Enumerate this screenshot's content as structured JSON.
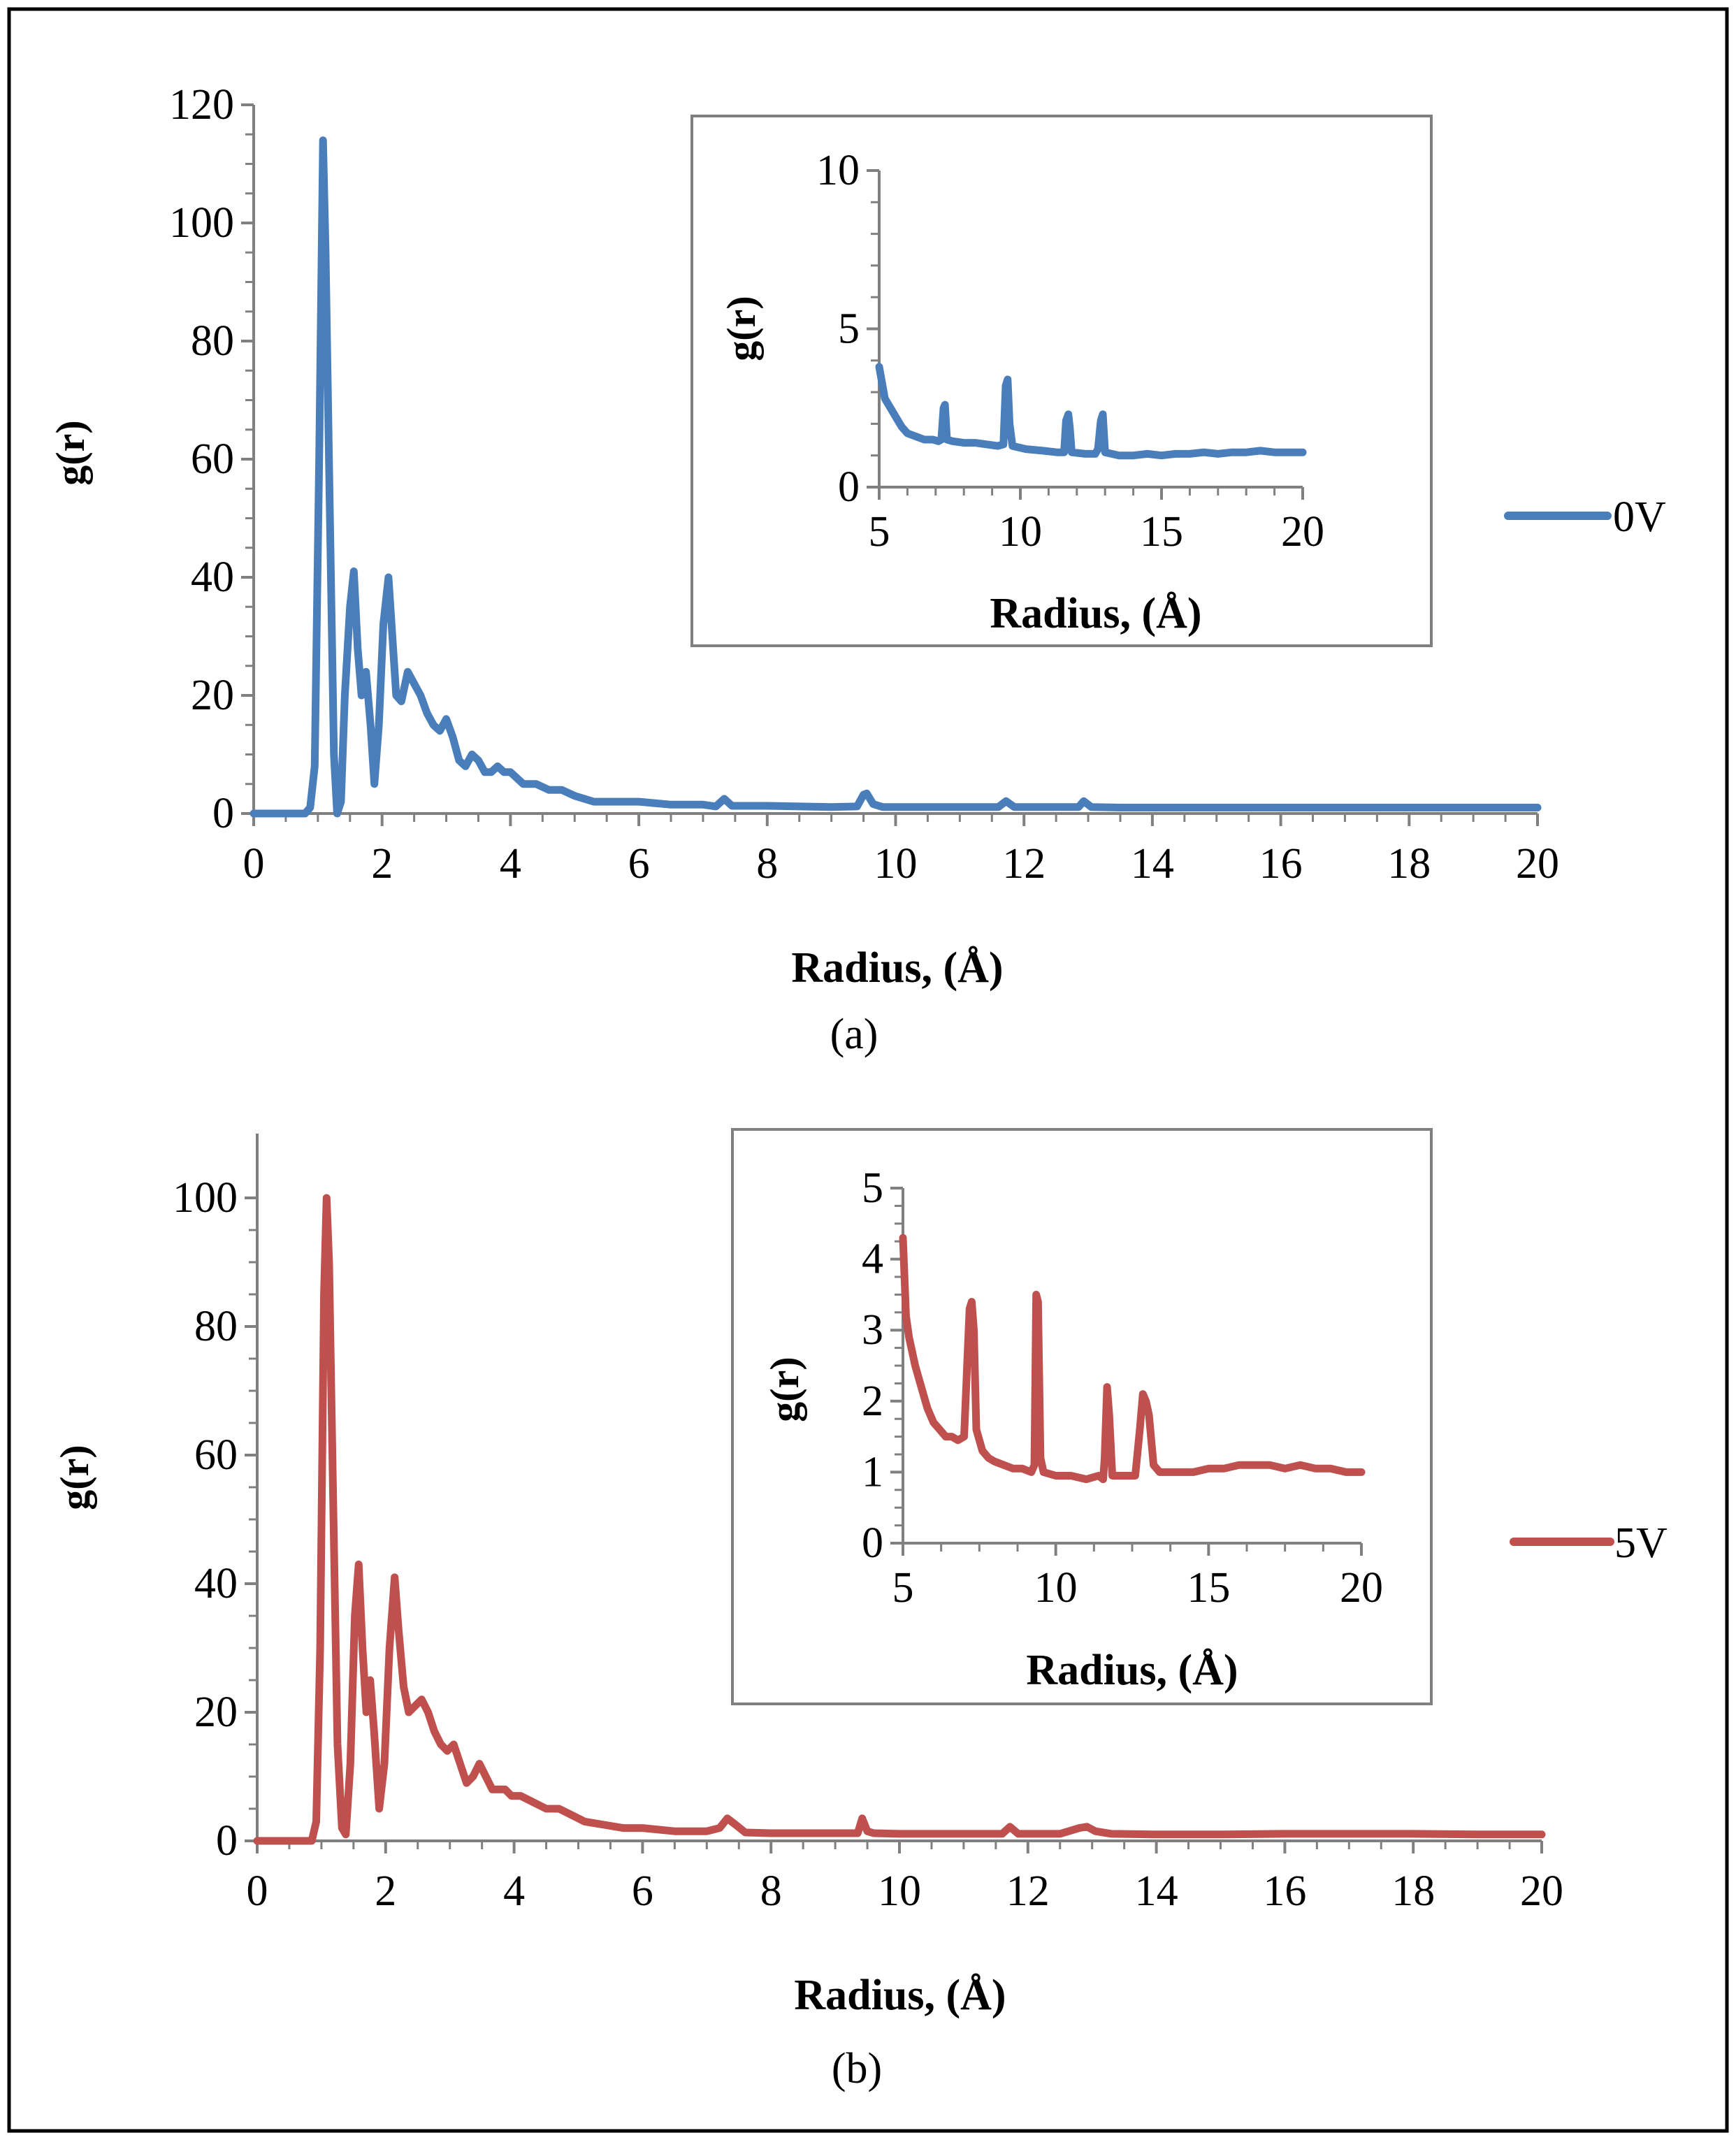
{
  "figure": {
    "caption_a": "(a)",
    "caption_b": "(b)"
  },
  "chart_data": [
    {
      "type": "line",
      "id": "a",
      "xlabel": "Radius, (Å)",
      "ylabel": "g(r)",
      "xlim": [
        0,
        20
      ],
      "ylim": [
        0,
        120
      ],
      "xticks": [
        0,
        2,
        4,
        6,
        8,
        10,
        12,
        14,
        16,
        18,
        20
      ],
      "yticks": [
        0,
        20,
        40,
        60,
        80,
        100,
        120
      ],
      "legend": "right",
      "color": "#4A7EBB",
      "series": [
        {
          "name": "0V",
          "x": [
            0,
            0.8,
            0.88,
            0.95,
            1.02,
            1.08,
            1.12,
            1.18,
            1.25,
            1.3,
            1.36,
            1.42,
            1.5,
            1.56,
            1.62,
            1.68,
            1.75,
            1.82,
            1.88,
            1.95,
            2.02,
            2.1,
            2.16,
            2.22,
            2.3,
            2.4,
            2.5,
            2.6,
            2.7,
            2.8,
            2.9,
            3.0,
            3.1,
            3.2,
            3.3,
            3.4,
            3.5,
            3.6,
            3.7,
            3.8,
            3.9,
            4.0,
            4.2,
            4.4,
            4.6,
            4.8,
            5.0,
            5.3,
            5.6,
            6.0,
            6.5,
            7.0,
            7.2,
            7.33,
            7.45,
            7.6,
            8.0,
            8.5,
            9.0,
            9.4,
            9.5,
            9.55,
            9.65,
            9.8,
            10.5,
            11.0,
            11.6,
            11.72,
            11.85,
            12.3,
            12.85,
            12.93,
            13.05,
            13.5,
            14,
            15,
            16,
            17,
            18,
            19,
            20
          ],
          "y": [
            0,
            0,
            1,
            8,
            60,
            114,
            95,
            55,
            10,
            0,
            2,
            20,
            35,
            41,
            28,
            20,
            24,
            15,
            5,
            15,
            32,
            40,
            30,
            20,
            19,
            24,
            22,
            20,
            17,
            15,
            14,
            16,
            13,
            9,
            8,
            10,
            9,
            7,
            7,
            8,
            7,
            7,
            5,
            5,
            4,
            4,
            3,
            2,
            2,
            2,
            1.5,
            1.5,
            1.2,
            2.5,
            1.3,
            1.3,
            1.3,
            1.2,
            1.1,
            1.2,
            3.2,
            3.4,
            1.6,
            1.1,
            1.1,
            1.1,
            1.1,
            2.1,
            1.1,
            1.1,
            1.1,
            2.1,
            1.1,
            1.0,
            1.0,
            1.0,
            1.0,
            1.0,
            1.0,
            1.0,
            1.0
          ]
        }
      ],
      "inset": {
        "xlabel": "Radius, (Å)",
        "ylabel": "g(r)",
        "xlim": [
          5,
          20
        ],
        "ylim": [
          0,
          10
        ],
        "xticks": [
          5,
          10,
          15,
          20
        ],
        "yticks": [
          0,
          5,
          10
        ],
        "x": [
          5,
          5.2,
          5.4,
          5.6,
          5.8,
          6.0,
          6.3,
          6.6,
          6.9,
          7.1,
          7.2,
          7.28,
          7.33,
          7.4,
          7.6,
          8.0,
          8.4,
          8.8,
          9.2,
          9.4,
          9.48,
          9.55,
          9.62,
          9.72,
          10.2,
          10.8,
          11.3,
          11.55,
          11.62,
          11.7,
          11.75,
          11.82,
          12.3,
          12.65,
          12.75,
          12.85,
          12.92,
          13.0,
          13.5,
          14,
          14.5,
          15,
          15.5,
          16,
          16.5,
          17,
          17.5,
          18,
          18.5,
          19,
          19.5,
          20
        ],
        "y": [
          3.8,
          2.8,
          2.5,
          2.2,
          1.9,
          1.7,
          1.6,
          1.5,
          1.5,
          1.45,
          1.5,
          2.5,
          2.6,
          1.5,
          1.45,
          1.4,
          1.4,
          1.35,
          1.3,
          1.35,
          3.2,
          3.4,
          2.0,
          1.3,
          1.2,
          1.15,
          1.1,
          1.1,
          2.1,
          2.3,
          1.9,
          1.1,
          1.05,
          1.05,
          1.2,
          2.1,
          2.3,
          1.1,
          1.0,
          1.0,
          1.05,
          1.0,
          1.05,
          1.05,
          1.1,
          1.05,
          1.1,
          1.1,
          1.15,
          1.1,
          1.1,
          1.1
        ]
      }
    },
    {
      "type": "line",
      "id": "b",
      "xlabel": "Radius, (Å)",
      "ylabel": "g(r)",
      "xlim": [
        0,
        20
      ],
      "ylim": [
        0,
        110
      ],
      "xticks": [
        0,
        2,
        4,
        6,
        8,
        10,
        12,
        14,
        16,
        18,
        20
      ],
      "yticks": [
        0,
        20,
        40,
        60,
        80,
        100
      ],
      "legend": "right",
      "color": "#C0504D",
      "series": [
        {
          "name": "5V",
          "x": [
            0,
            0.85,
            0.92,
            0.98,
            1.04,
            1.08,
            1.12,
            1.18,
            1.25,
            1.32,
            1.38,
            1.45,
            1.52,
            1.58,
            1.64,
            1.7,
            1.76,
            1.82,
            1.9,
            1.98,
            2.06,
            2.14,
            2.2,
            2.28,
            2.36,
            2.46,
            2.56,
            2.66,
            2.76,
            2.86,
            2.96,
            3.06,
            3.16,
            3.26,
            3.36,
            3.46,
            3.56,
            3.66,
            3.76,
            3.86,
            3.96,
            4.1,
            4.3,
            4.5,
            4.7,
            4.9,
            5.1,
            5.4,
            5.7,
            6.0,
            6.5,
            7.0,
            7.2,
            7.32,
            7.45,
            7.6,
            8.0,
            8.5,
            9.0,
            9.35,
            9.42,
            9.5,
            9.6,
            10.0,
            11.0,
            11.6,
            11.72,
            11.85,
            12.5,
            12.8,
            12.92,
            13.05,
            13.3,
            14,
            15,
            16,
            17,
            18,
            19,
            20
          ],
          "y": [
            0,
            0,
            3,
            30,
            85,
            100,
            90,
            55,
            15,
            2,
            1,
            12,
            35,
            43,
            30,
            20,
            25,
            17,
            5,
            12,
            30,
            41,
            33,
            24,
            20,
            21,
            22,
            20,
            17,
            15,
            14,
            15,
            12,
            9,
            10,
            12,
            10,
            8,
            8,
            8,
            7,
            7,
            6,
            5,
            5,
            4,
            3,
            2.5,
            2,
            2,
            1.5,
            1.5,
            2,
            3.5,
            2.5,
            1.3,
            1.2,
            1.2,
            1.2,
            1.2,
            3.5,
            1.5,
            1.2,
            1.1,
            1.1,
            1.1,
            2.2,
            1.1,
            1.1,
            2.0,
            2.2,
            1.5,
            1.1,
            1.0,
            1.0,
            1.1,
            1.1,
            1.1,
            1.0,
            1.0
          ]
        }
      ],
      "inset": {
        "xlabel": "Radius, (Å)",
        "ylabel": "g(r)",
        "xlim": [
          5,
          20
        ],
        "ylim": [
          0,
          5
        ],
        "xticks": [
          5,
          10,
          15,
          20
        ],
        "yticks": [
          0,
          1,
          2,
          3,
          4,
          5
        ],
        "x": [
          5,
          5.1,
          5.2,
          5.4,
          5.6,
          5.8,
          6.0,
          6.2,
          6.4,
          6.6,
          6.8,
          7.0,
          7.1,
          7.18,
          7.25,
          7.32,
          7.4,
          7.6,
          7.8,
          8.0,
          8.3,
          8.6,
          8.9,
          9.2,
          9.3,
          9.36,
          9.42,
          9.5,
          9.6,
          10.0,
          10.5,
          11.0,
          11.4,
          11.55,
          11.6,
          11.68,
          11.75,
          11.85,
          12.2,
          12.6,
          12.75,
          12.85,
          12.95,
          13.05,
          13.2,
          13.4,
          13.7,
          14,
          14.5,
          15,
          15.5,
          16,
          16.5,
          17,
          17.5,
          18,
          18.5,
          19,
          19.5,
          20
        ],
        "y": [
          4.3,
          3.2,
          2.9,
          2.5,
          2.2,
          1.9,
          1.7,
          1.6,
          1.5,
          1.5,
          1.45,
          1.5,
          2.5,
          3.3,
          3.4,
          3.0,
          1.6,
          1.3,
          1.2,
          1.15,
          1.1,
          1.05,
          1.05,
          1.0,
          1.1,
          3.5,
          3.4,
          1.2,
          1.0,
          0.95,
          0.95,
          0.9,
          0.95,
          0.9,
          1.2,
          2.2,
          1.8,
          0.95,
          0.95,
          0.95,
          1.6,
          2.1,
          2.0,
          1.8,
          1.1,
          1.0,
          1.0,
          1.0,
          1.0,
          1.05,
          1.05,
          1.1,
          1.1,
          1.1,
          1.05,
          1.1,
          1.05,
          1.05,
          1.0,
          1.0
        ]
      }
    }
  ]
}
